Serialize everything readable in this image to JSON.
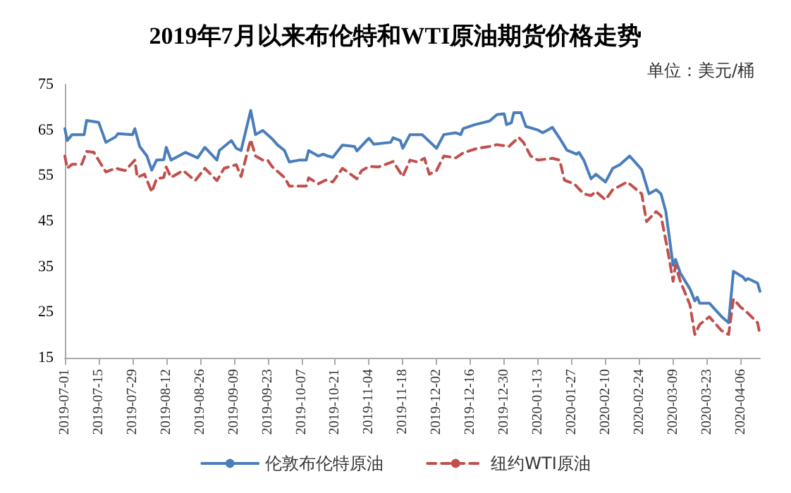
{
  "chart_data": {
    "type": "line",
    "title": "2019年7月以来布伦特和WTI原油期货价格走势",
    "annotations": [
      "单位：美元/桶"
    ],
    "xlim": [
      "2019-07-01",
      "2020-04-14"
    ],
    "xticks": [
      "2019-07-01",
      "2019-07-15",
      "2019-07-29",
      "2019-08-12",
      "2019-08-26",
      "2019-09-09",
      "2019-09-23",
      "2019-10-07",
      "2019-10-21",
      "2019-11-04",
      "2019-11-18",
      "2019-12-02",
      "2019-12-16",
      "2019-12-30",
      "2020-01-13",
      "2020-01-27",
      "2020-02-10",
      "2020-02-24",
      "2020-03-09",
      "2020-03-23",
      "2020-04-06"
    ],
    "ylim": [
      15,
      75
    ],
    "yticks": [
      15,
      25,
      35,
      45,
      55,
      65,
      75
    ],
    "grid": false,
    "legend": "bottom",
    "marker": "none",
    "series": [
      {
        "name": "伦敦布伦特原油",
        "color": "#4a7ebb",
        "line_style": "solid",
        "x": [
          "2019-07-01",
          "2019-07-02",
          "2019-07-04",
          "2019-07-09",
          "2019-07-10",
          "2019-07-15",
          "2019-07-18",
          "2019-07-22",
          "2019-07-23",
          "2019-07-29",
          "2019-07-30",
          "2019-08-01",
          "2019-08-04",
          "2019-08-06",
          "2019-08-08",
          "2019-08-11",
          "2019-08-12",
          "2019-08-14",
          "2019-08-20",
          "2019-08-25",
          "2019-08-28",
          "2019-09-02",
          "2019-09-03",
          "2019-09-08",
          "2019-09-10",
          "2019-09-12",
          "2019-09-16",
          "2019-09-18",
          "2019-09-21",
          "2019-09-25",
          "2019-09-27",
          "2019-09-30",
          "2019-10-02",
          "2019-10-06",
          "2019-10-09",
          "2019-10-10",
          "2019-10-14",
          "2019-10-16",
          "2019-10-18",
          "2019-10-20",
          "2019-10-24",
          "2019-10-29",
          "2019-10-30",
          "2019-11-03",
          "2019-11-04",
          "2019-11-06",
          "2019-11-13",
          "2019-11-14",
          "2019-11-17",
          "2019-11-18",
          "2019-11-21",
          "2019-11-26",
          "2019-12-02",
          "2019-12-05",
          "2019-12-10",
          "2019-12-12",
          "2019-12-13",
          "2019-12-18",
          "2019-12-21",
          "2019-12-24",
          "2019-12-27",
          "2019-12-30",
          "2019-12-31",
          "2020-01-02",
          "2020-01-03",
          "2020-01-06",
          "2020-01-08",
          "2020-01-13",
          "2020-01-15",
          "2020-01-17",
          "2020-01-19",
          "2020-01-22",
          "2020-01-25",
          "2020-01-29",
          "2020-01-30",
          "2020-02-01",
          "2020-02-04",
          "2020-02-06",
          "2020-02-10",
          "2020-02-13",
          "2020-02-16",
          "2020-02-20",
          "2020-02-25",
          "2020-02-28",
          "2020-03-02",
          "2020-03-04",
          "2020-03-06",
          "2020-03-09",
          "2020-03-10",
          "2020-03-12",
          "2020-03-16",
          "2020-03-18",
          "2020-03-19",
          "2020-03-20",
          "2020-03-24",
          "2020-03-29",
          "2020-04-01",
          "2020-04-03",
          "2020-04-07",
          "2020-04-08",
          "2020-04-09",
          "2020-04-13",
          "2020-04-14"
        ],
        "values": [
          65.3,
          62.7,
          64.0,
          64.0,
          67.1,
          66.7,
          62.3,
          63.5,
          64.2,
          64.0,
          65.3,
          61.4,
          59.3,
          56.2,
          58.4,
          58.5,
          61.2,
          58.4,
          60.1,
          58.9,
          61.2,
          58.4,
          60.5,
          62.7,
          61.0,
          60.5,
          69.3,
          64.0,
          64.9,
          63.0,
          61.8,
          60.5,
          58.0,
          58.4,
          58.4,
          60.5,
          59.3,
          59.7,
          59.3,
          59.0,
          61.7,
          61.4,
          60.4,
          62.7,
          63.2,
          61.9,
          62.3,
          63.3,
          62.7,
          61.0,
          64.0,
          64.0,
          61.0,
          64.0,
          64.4,
          64.0,
          65.3,
          66.2,
          66.6,
          67.0,
          68.4,
          68.6,
          66.2,
          66.6,
          68.8,
          68.8,
          65.8,
          65.0,
          64.4,
          65.0,
          65.6,
          63.2,
          60.6,
          59.7,
          60.1,
          58.4,
          54.3,
          55.3,
          53.6,
          56.6,
          57.4,
          59.3,
          56.3,
          51.0,
          51.9,
          51.0,
          47.1,
          35.3,
          36.6,
          33.6,
          30.1,
          27.5,
          28.3,
          27.0,
          27.0,
          24.1,
          22.7,
          34.0,
          32.7,
          32.0,
          32.4,
          31.4,
          29.6
        ]
      },
      {
        "name": "纽约WTI原油",
        "color": "#c0504d",
        "line_style": "dashed",
        "x": [
          "2019-07-01",
          "2019-07-02",
          "2019-07-04",
          "2019-07-08",
          "2019-07-10",
          "2019-07-13",
          "2019-07-18",
          "2019-07-22",
          "2019-07-26",
          "2019-07-30",
          "2019-07-31",
          "2019-08-03",
          "2019-08-06",
          "2019-08-08",
          "2019-08-11",
          "2019-08-12",
          "2019-08-14",
          "2019-08-19",
          "2019-08-24",
          "2019-08-28",
          "2019-09-02",
          "2019-09-05",
          "2019-09-10",
          "2019-09-12",
          "2019-09-16",
          "2019-09-18",
          "2019-09-21",
          "2019-09-23",
          "2019-09-25",
          "2019-09-30",
          "2019-10-02",
          "2019-10-09",
          "2019-10-10",
          "2019-10-14",
          "2019-10-17",
          "2019-10-20",
          "2019-10-24",
          "2019-10-30",
          "2019-11-01",
          "2019-11-04",
          "2019-11-08",
          "2019-11-14",
          "2019-11-18",
          "2019-11-21",
          "2019-11-24",
          "2019-11-27",
          "2019-11-29",
          "2019-12-02",
          "2019-12-05",
          "2019-12-10",
          "2019-12-13",
          "2019-12-19",
          "2019-12-24",
          "2019-12-27",
          "2020-01-01",
          "2020-01-05",
          "2020-01-07",
          "2020-01-10",
          "2020-01-13",
          "2020-01-19",
          "2020-01-22",
          "2020-01-24",
          "2020-01-28",
          "2020-02-01",
          "2020-02-04",
          "2020-02-06",
          "2020-02-10",
          "2020-02-13",
          "2020-02-19",
          "2020-02-22",
          "2020-02-25",
          "2020-02-27",
          "2020-03-02",
          "2020-03-04",
          "2020-03-07",
          "2020-03-09",
          "2020-03-10",
          "2020-03-12",
          "2020-03-16",
          "2020-03-18",
          "2020-03-20",
          "2020-03-24",
          "2020-03-29",
          "2020-04-01",
          "2020-04-03",
          "2020-04-06",
          "2020-04-08",
          "2020-04-13",
          "2020-04-14"
        ],
        "values": [
          59.3,
          56.6,
          57.5,
          57.5,
          60.3,
          60.1,
          55.8,
          56.6,
          56.1,
          58.4,
          54.6,
          55.3,
          51.4,
          54.3,
          54.6,
          56.9,
          54.6,
          56.1,
          53.9,
          56.6,
          53.9,
          56.6,
          57.4,
          54.8,
          62.9,
          59.3,
          58.4,
          58.4,
          56.9,
          54.6,
          52.7,
          52.7,
          54.5,
          53.2,
          54.0,
          53.6,
          56.6,
          54.3,
          56.1,
          57.0,
          56.9,
          58.1,
          54.8,
          58.4,
          58.0,
          58.8,
          55.3,
          56.1,
          59.3,
          58.9,
          60.0,
          61.0,
          61.4,
          61.8,
          61.4,
          63.4,
          62.3,
          59.3,
          58.4,
          58.8,
          58.4,
          54.0,
          53.2,
          51.0,
          50.6,
          51.5,
          49.7,
          51.9,
          53.6,
          52.3,
          51.0,
          44.9,
          47.1,
          46.2,
          37.9,
          31.8,
          35.3,
          31.8,
          26.6,
          20.1,
          22.3,
          24.0,
          21.0,
          20.1,
          27.9,
          26.1,
          25.3,
          22.7,
          20.1
        ]
      }
    ]
  }
}
